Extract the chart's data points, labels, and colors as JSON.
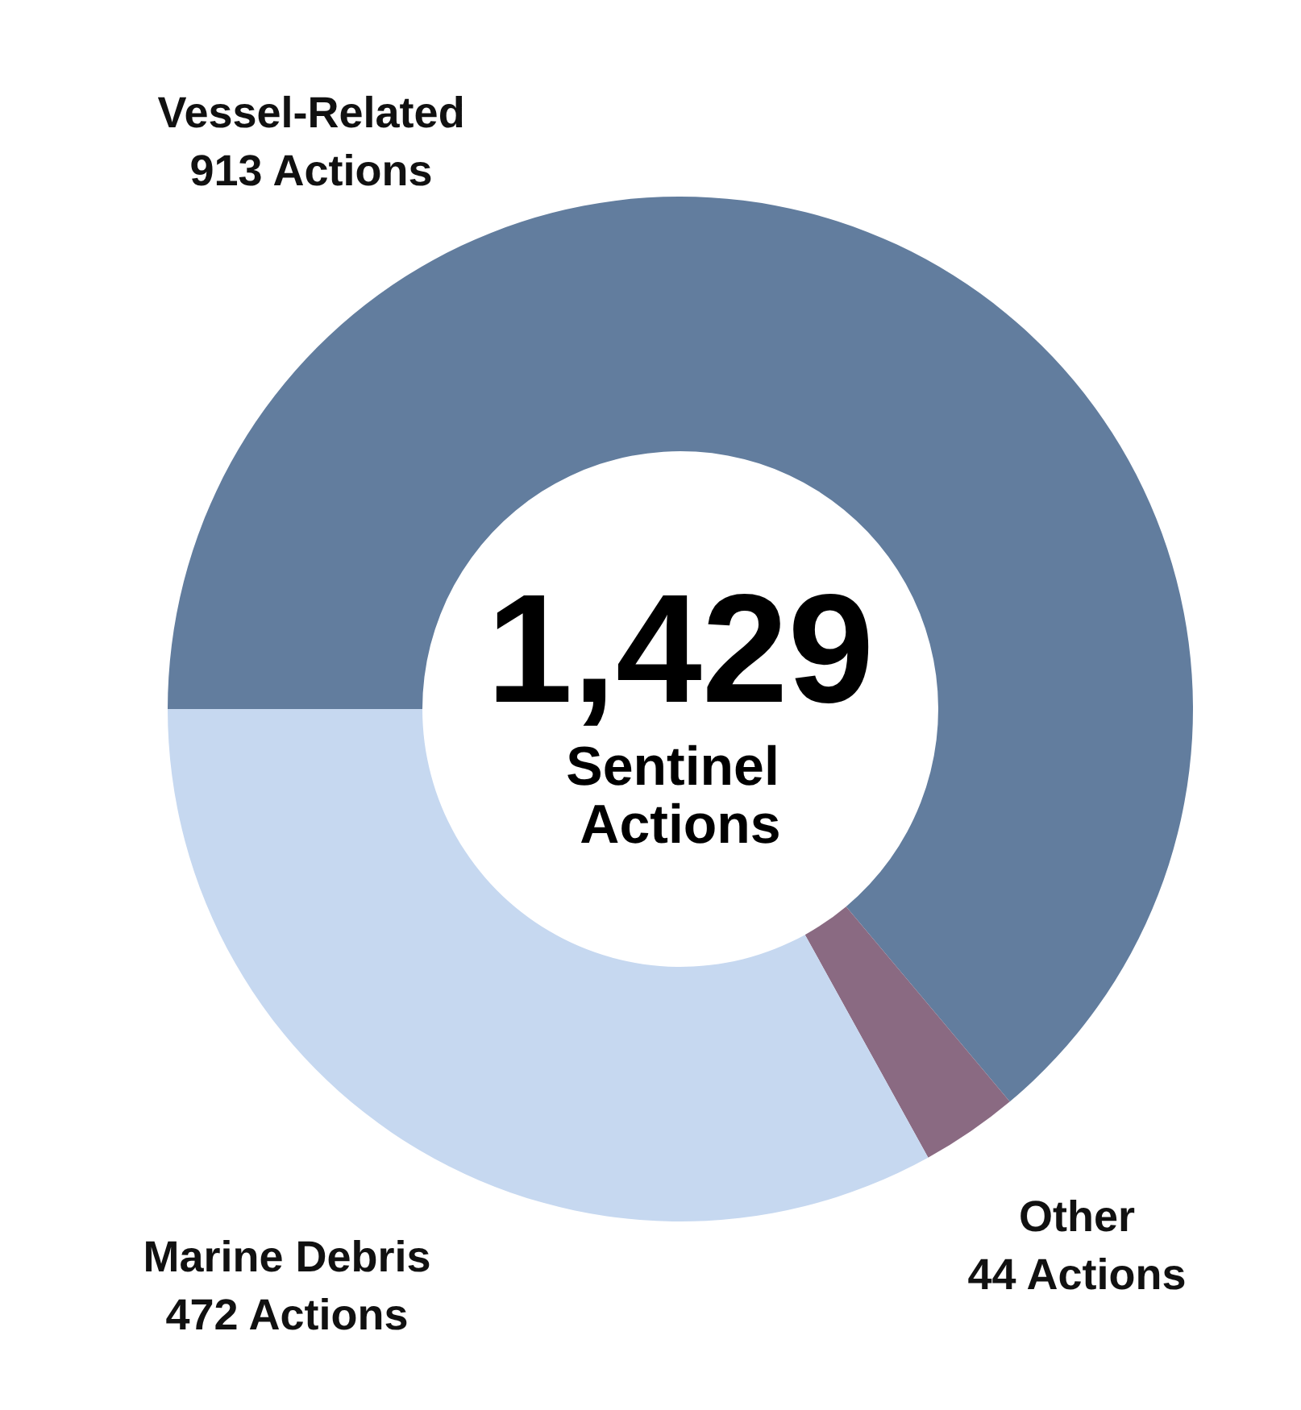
{
  "chart_data": {
    "type": "donut",
    "categories": [
      "Vessel-Related",
      "Other",
      "Marine Debris"
    ],
    "values": [
      913,
      44,
      472
    ],
    "colors": [
      "#627d9e",
      "#8a6a82",
      "#c6d8f0"
    ],
    "value_labels": [
      "913 Actions",
      "44 Actions",
      "472 Actions"
    ],
    "annotations": [
      "1,429",
      "Sentinel Actions"
    ],
    "legend": false
  }
}
